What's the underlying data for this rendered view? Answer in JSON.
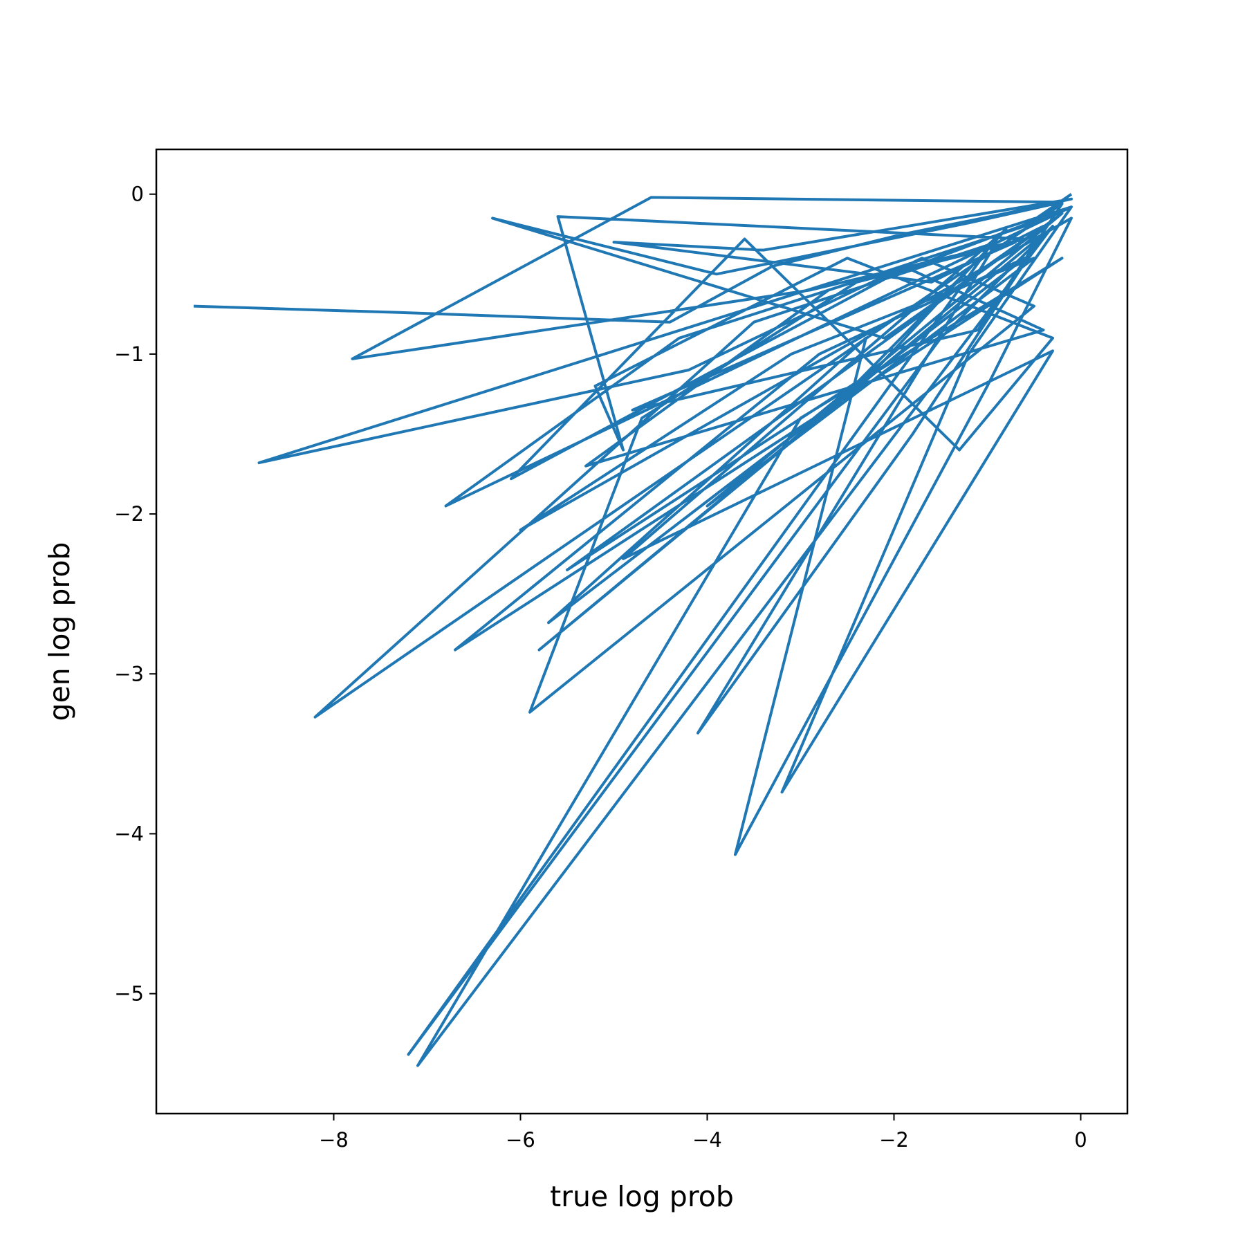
{
  "chart_data": {
    "type": "line",
    "title": "",
    "xlabel": "true log prob",
    "ylabel": "gen log prob",
    "xlim": [
      -9.9,
      0.5
    ],
    "ylim": [
      -5.75,
      0.28
    ],
    "xticks": [
      -8,
      -6,
      -4,
      -2,
      0
    ],
    "xtick_labels": [
      "−8",
      "−6",
      "−4",
      "−2",
      "0"
    ],
    "yticks": [
      0,
      -1,
      -2,
      -3,
      -4,
      -5
    ],
    "ytick_labels": [
      "0",
      "−1",
      "−2",
      "−3",
      "−4",
      "−5"
    ],
    "grid": false,
    "line_color": "#1f77b4",
    "series": [
      {
        "name": "",
        "x": [
          -9.5,
          -7.3,
          -4.4,
          -3.3,
          -1.9,
          -0.8,
          -0.1,
          -3.4,
          -5.0,
          -1.6,
          -0.4,
          -2.1,
          -6.3,
          -3.9,
          -1.2,
          -0.2,
          -4.6,
          -7.8,
          -2.9,
          -0.6,
          -5.6,
          -4.9,
          -5.2,
          -2.5,
          -0.3,
          -1.3,
          -3.6,
          -6.1,
          -2.0,
          -0.1,
          -8.8,
          -4.2,
          -1.7,
          -0.5,
          -5.9,
          -4.7,
          -2.4,
          -0.7,
          -4.8,
          -1.1,
          -0.2,
          -8.2,
          -3.5,
          -0.9,
          -4.1,
          -1.8,
          -0.4,
          -5.8,
          -2.6,
          -1.0,
          -7.2,
          -1.5,
          -0.3,
          -7.1,
          -3.0,
          -0.2,
          -6.7,
          -2.8,
          -0.6,
          -5.7,
          -2.3,
          -3.7,
          -1.0,
          -0.1,
          -6.0,
          -3.1,
          -0.5,
          -4.0,
          -1.4,
          -0.2,
          -5.5,
          -2.2,
          -0.8,
          -4.9,
          -0.3,
          -3.2,
          -1.2,
          -0.1,
          -6.8,
          -4.3,
          -1.9,
          -0.4,
          -5.3,
          -2.7,
          -0.6,
          -0.1
        ],
        "y": [
          -0.7,
          -0.74,
          -0.8,
          -0.45,
          -0.25,
          -0.12,
          -0.03,
          -0.35,
          -0.3,
          -0.55,
          -0.2,
          -0.9,
          -0.15,
          -0.5,
          -0.18,
          -0.05,
          -0.02,
          -1.03,
          -0.6,
          -0.28,
          -0.14,
          -1.6,
          -1.2,
          -0.4,
          -0.9,
          -1.6,
          -0.28,
          -1.78,
          -0.5,
          -0.08,
          -1.68,
          -1.1,
          -0.4,
          -0.7,
          -3.24,
          -1.4,
          -0.55,
          -0.3,
          -1.35,
          -0.85,
          -0.06,
          -3.27,
          -0.8,
          -0.3,
          -3.37,
          -1.5,
          -0.25,
          -2.85,
          -1.3,
          -0.35,
          -5.38,
          -0.9,
          -0.2,
          -5.45,
          -1.4,
          -0.4,
          -2.85,
          -1.0,
          -0.4,
          -2.68,
          -0.9,
          -4.13,
          -1.2,
          -0.15,
          -2.1,
          -1.0,
          -0.4,
          -1.95,
          -0.7,
          -0.12,
          -2.35,
          -1.1,
          -0.22,
          -2.28,
          -0.98,
          -3.74,
          -1.0,
          -0.08,
          -1.95,
          -0.9,
          -0.45,
          -0.85,
          -1.7,
          -0.6,
          -0.2,
          0.0
        ]
      }
    ]
  }
}
